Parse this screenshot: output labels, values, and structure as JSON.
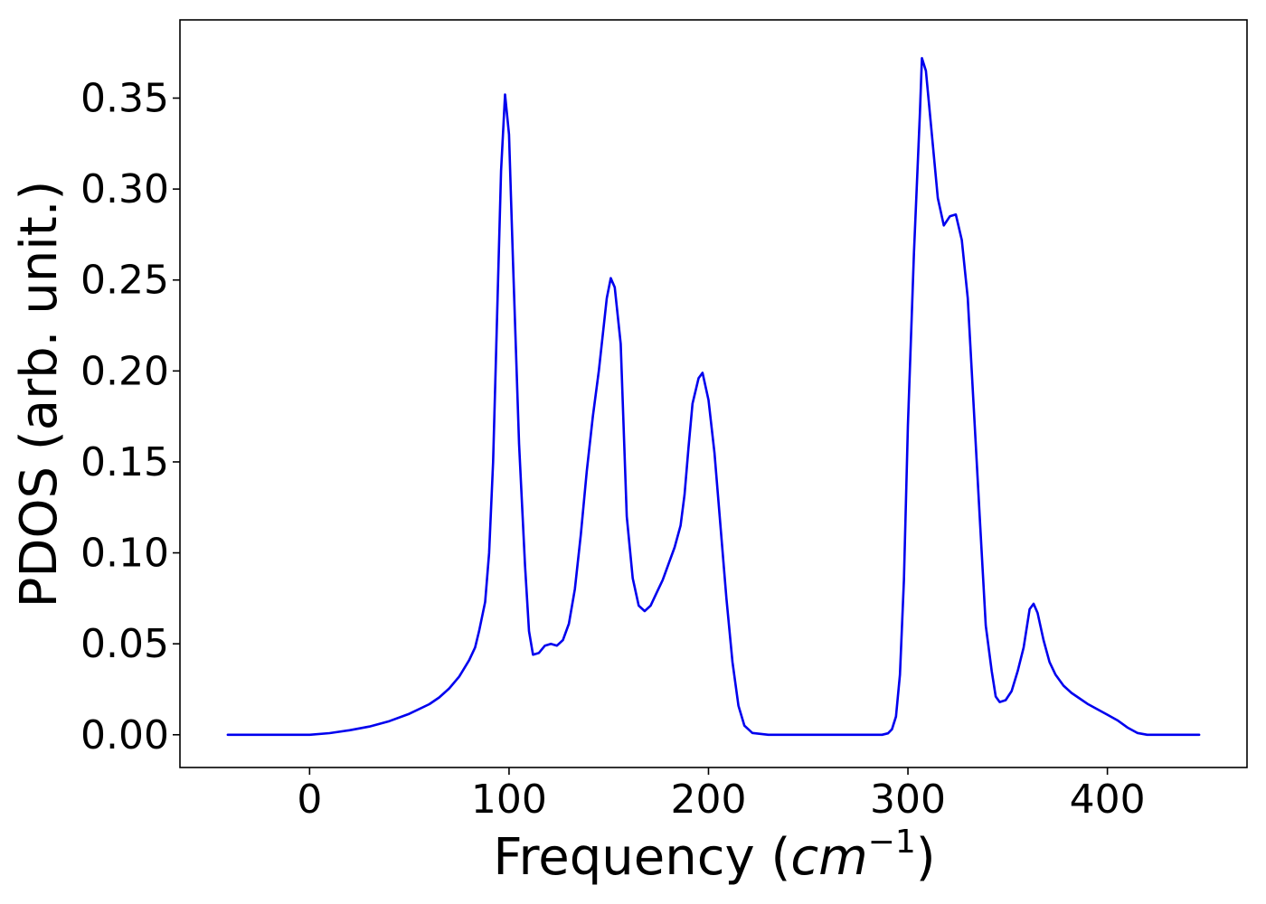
{
  "chart_data": {
    "type": "line",
    "title": "",
    "xlabel": {
      "prefix": "Frequency (",
      "var": "cm",
      "sup": "−1",
      "suffix": ")"
    },
    "ylabel": "PDOS (arb. unit.)",
    "xlim": [
      -65,
      470
    ],
    "ylim": [
      -0.018,
      0.393
    ],
    "xticks": [
      0,
      100,
      200,
      300,
      400
    ],
    "xtick_labels": [
      "0",
      "100",
      "200",
      "300",
      "400"
    ],
    "yticks": [
      0.0,
      0.05,
      0.1,
      0.15,
      0.2,
      0.25,
      0.3,
      0.35
    ],
    "ytick_labels": [
      "0.00",
      "0.05",
      "0.10",
      "0.15",
      "0.20",
      "0.25",
      "0.30",
      "0.35"
    ],
    "grid": false,
    "legend": null,
    "colors": {
      "line": "#0000ee",
      "axes": "#000000",
      "background": "#ffffff"
    },
    "series": [
      {
        "x": [
          -41,
          -20,
          0,
          10,
          20,
          30,
          40,
          50,
          60,
          65,
          70,
          75,
          80,
          83,
          85,
          88,
          90,
          92,
          94,
          96,
          98,
          100,
          102,
          105,
          108,
          110,
          112,
          115,
          118,
          121,
          124,
          127,
          130,
          133,
          136,
          139,
          142,
          145,
          147,
          149,
          151,
          153,
          156,
          159,
          162,
          165,
          168,
          171,
          174,
          177,
          180,
          183,
          186,
          188,
          190,
          192,
          195,
          197,
          200,
          203,
          206,
          209,
          212,
          215,
          218,
          222,
          230,
          250,
          270,
          287,
          290,
          292,
          294,
          296,
          298,
          300,
          303,
          306,
          307,
          309,
          312,
          315,
          318,
          321,
          324,
          327,
          330,
          333,
          336,
          339,
          342,
          344,
          346,
          349,
          352,
          355,
          358,
          361,
          363,
          365,
          368,
          371,
          374,
          378,
          382,
          386,
          390,
          395,
          400,
          405,
          410,
          415,
          420,
          430,
          446
        ],
        "y": [
          0,
          0,
          0,
          0.0009,
          0.0025,
          0.0045,
          0.0075,
          0.0115,
          0.0168,
          0.0205,
          0.0255,
          0.032,
          0.041,
          0.048,
          0.057,
          0.073,
          0.1,
          0.15,
          0.23,
          0.31,
          0.352,
          0.33,
          0.26,
          0.16,
          0.093,
          0.057,
          0.044,
          0.045,
          0.049,
          0.05,
          0.049,
          0.052,
          0.061,
          0.08,
          0.11,
          0.145,
          0.175,
          0.2,
          0.22,
          0.24,
          0.251,
          0.246,
          0.215,
          0.12,
          0.086,
          0.071,
          0.068,
          0.071,
          0.078,
          0.085,
          0.094,
          0.103,
          0.115,
          0.132,
          0.158,
          0.182,
          0.196,
          0.199,
          0.184,
          0.155,
          0.115,
          0.075,
          0.04,
          0.016,
          0.005,
          0.001,
          0,
          0,
          0,
          0,
          0.0008,
          0.003,
          0.01,
          0.033,
          0.085,
          0.17,
          0.265,
          0.342,
          0.372,
          0.365,
          0.33,
          0.295,
          0.28,
          0.285,
          0.286,
          0.272,
          0.24,
          0.18,
          0.12,
          0.06,
          0.035,
          0.021,
          0.018,
          0.019,
          0.024,
          0.035,
          0.048,
          0.069,
          0.072,
          0.067,
          0.052,
          0.04,
          0.033,
          0.027,
          0.023,
          0.02,
          0.017,
          0.014,
          0.011,
          0.008,
          0.004,
          0.001,
          0,
          0,
          0
        ]
      }
    ]
  }
}
